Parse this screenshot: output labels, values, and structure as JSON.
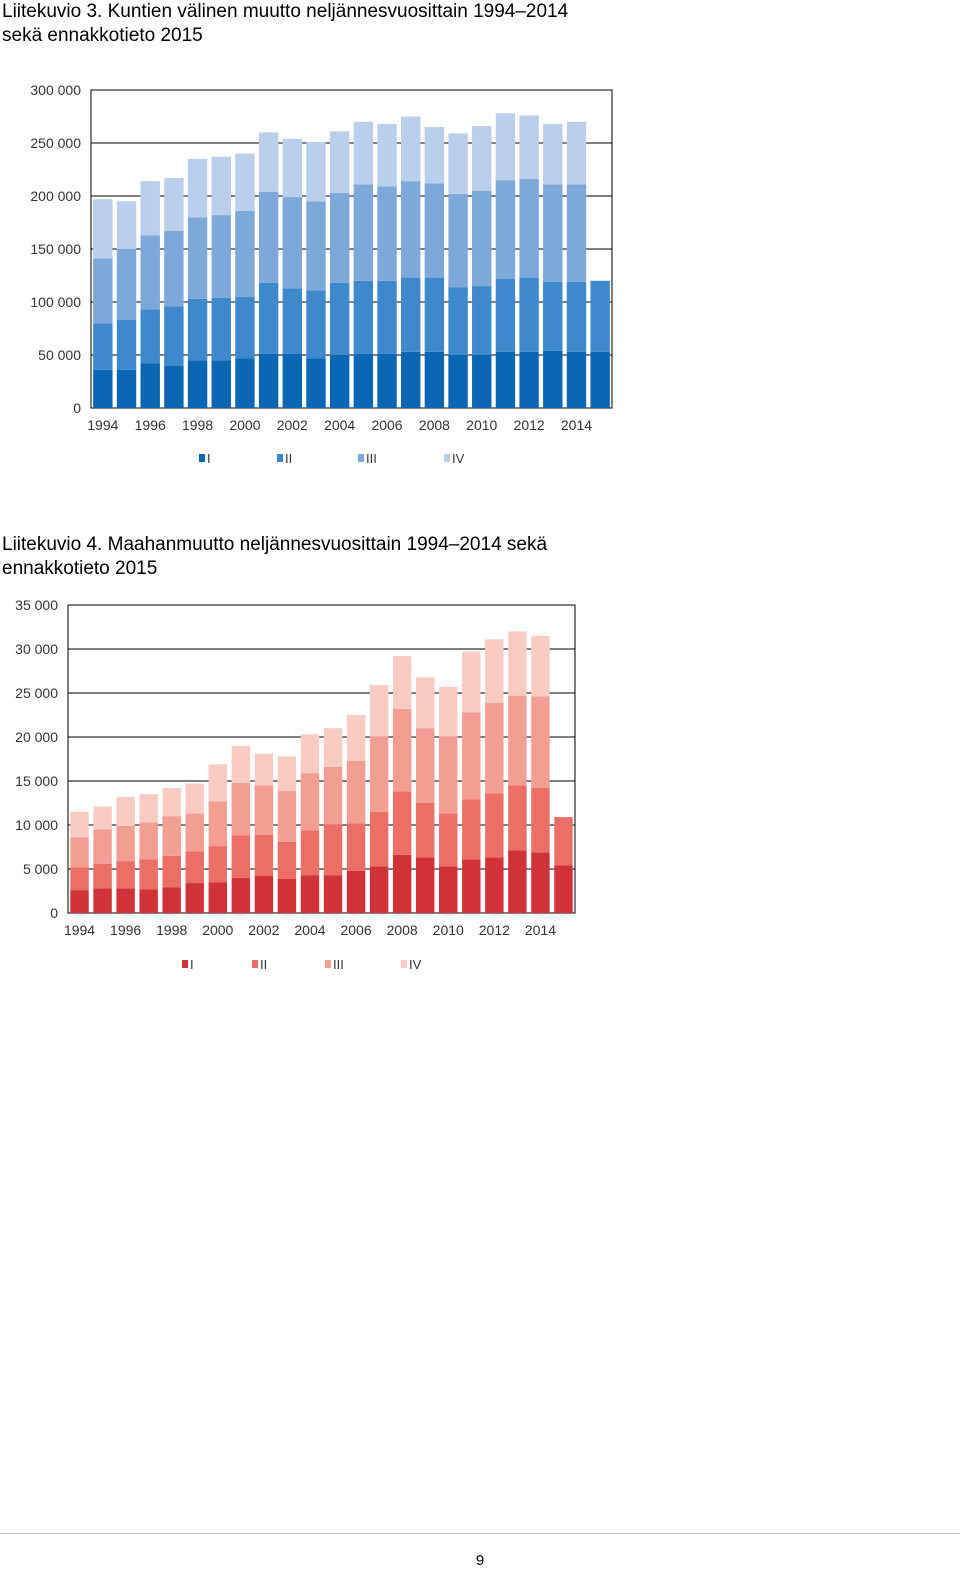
{
  "charts": [
    {
      "heading_line1": "Liitekuvio 3. Kuntien välinen muutto neljännesvuosittain 1994–2014",
      "heading_line2": "sekä ennakkotieto 2015"
    },
    {
      "heading_line1": "Liitekuvio 4. Maahanmuutto neljännesvuosittain 1994–2014 sekä",
      "heading_line2": "ennakkotieto 2015"
    }
  ],
  "page_number": "9",
  "chart_data": [
    {
      "type": "bar",
      "stacked": true,
      "categories": [
        "1994",
        "1995",
        "1996",
        "1997",
        "1998",
        "1999",
        "2000",
        "2001",
        "2002",
        "2003",
        "2004",
        "2005",
        "2006",
        "2007",
        "2008",
        "2009",
        "2010",
        "2011",
        "2012",
        "2013",
        "2014",
        "2015"
      ],
      "x_tick_labels": [
        "1994",
        "1996",
        "1998",
        "2000",
        "2002",
        "2004",
        "2006",
        "2008",
        "2010",
        "2012",
        "2014"
      ],
      "y_ticks": [
        0,
        50000,
        100000,
        150000,
        200000,
        250000,
        300000
      ],
      "y_tick_labels": [
        "0",
        "50 000",
        "100 000",
        "150 000",
        "200 000",
        "250 000",
        "300 000"
      ],
      "ylim": [
        0,
        300000
      ],
      "grid": true,
      "legend_position": "bottom",
      "series": [
        {
          "name": "I",
          "color": "#0b66b3",
          "values": [
            36000,
            36000,
            42000,
            40000,
            45000,
            45000,
            47000,
            51000,
            51000,
            47000,
            50000,
            51000,
            51000,
            53000,
            53000,
            50000,
            50000,
            53000,
            53000,
            54000,
            53000,
            53000
          ]
        },
        {
          "name": "II",
          "color": "#3d89cb",
          "values": [
            44000,
            47000,
            51000,
            56000,
            58000,
            59000,
            58000,
            67000,
            62000,
            64000,
            68000,
            69000,
            69000,
            70000,
            70000,
            64000,
            65000,
            69000,
            70000,
            65000,
            66000,
            67000
          ]
        },
        {
          "name": "III",
          "color": "#7fa8da",
          "values": [
            61000,
            67000,
            70000,
            71000,
            77000,
            78000,
            81000,
            86000,
            86000,
            84000,
            85000,
            91000,
            89000,
            91000,
            89000,
            88000,
            90000,
            93000,
            93000,
            92000,
            92000,
            0
          ]
        },
        {
          "name": "IV",
          "color": "#b9cfeb",
          "values": [
            56000,
            45000,
            51000,
            50000,
            55000,
            55000,
            54000,
            56000,
            55000,
            56000,
            58000,
            59000,
            59000,
            61000,
            53000,
            57000,
            61000,
            63000,
            60000,
            57000,
            59000,
            0
          ]
        }
      ]
    },
    {
      "type": "bar",
      "stacked": true,
      "categories": [
        "1994",
        "1995",
        "1996",
        "1997",
        "1998",
        "1999",
        "2000",
        "2001",
        "2002",
        "2003",
        "2004",
        "2005",
        "2006",
        "2007",
        "2008",
        "2009",
        "2010",
        "2011",
        "2012",
        "2013",
        "2014",
        "2015"
      ],
      "x_tick_labels": [
        "1994",
        "1996",
        "1998",
        "2000",
        "2002",
        "2004",
        "2006",
        "2008",
        "2010",
        "2012",
        "2014"
      ],
      "y_ticks": [
        0,
        5000,
        10000,
        15000,
        20000,
        25000,
        30000,
        35000
      ],
      "y_tick_labels": [
        "0",
        "5 000",
        "10 000",
        "15 000",
        "20 000",
        "25 000",
        "30 000",
        "35 000"
      ],
      "ylim": [
        0,
        35000
      ],
      "grid": true,
      "legend_position": "bottom",
      "series": [
        {
          "name": "I",
          "color": "#d1323a",
          "values": [
            2600,
            2800,
            2800,
            2700,
            2900,
            3400,
            3500,
            4000,
            4200,
            3900,
            4300,
            4300,
            4800,
            5300,
            6600,
            6300,
            5300,
            6100,
            6300,
            7100,
            6900,
            5400
          ]
        },
        {
          "name": "II",
          "color": "#ec6f67",
          "values": [
            2600,
            2800,
            3100,
            3400,
            3600,
            3600,
            4100,
            4800,
            4700,
            4200,
            5100,
            5800,
            5400,
            6200,
            7200,
            6200,
            6000,
            6800,
            7300,
            7400,
            7300,
            5500
          ]
        },
        {
          "name": "III",
          "color": "#f29e93",
          "values": [
            3400,
            3900,
            4000,
            4200,
            4500,
            4300,
            5100,
            6000,
            5600,
            5800,
            6500,
            6500,
            7100,
            8600,
            9400,
            8500,
            8800,
            9900,
            10300,
            10200,
            10400,
            0
          ]
        },
        {
          "name": "IV",
          "color": "#f8ccc3",
          "values": [
            2900,
            2600,
            3300,
            3200,
            3200,
            3400,
            4200,
            4200,
            3600,
            3900,
            4400,
            4400,
            5200,
            5800,
            6000,
            5800,
            5600,
            6900,
            7200,
            7300,
            6900,
            0
          ]
        }
      ]
    }
  ]
}
